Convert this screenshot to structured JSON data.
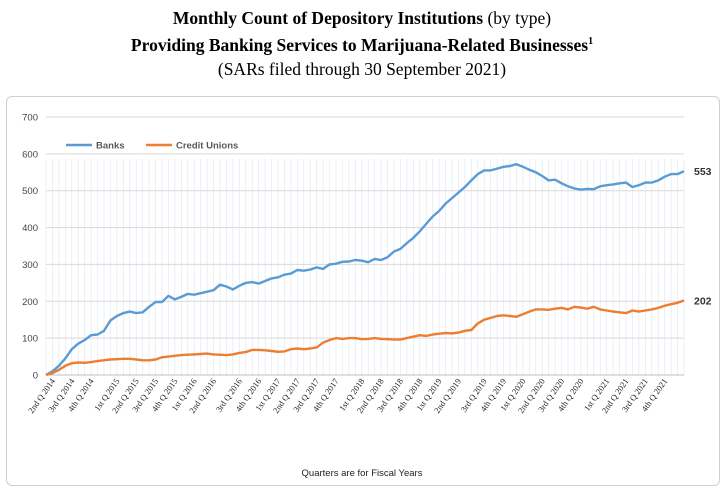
{
  "header": {
    "title_bold": "Monthly Count of Depository Institutions",
    "title_regular": " (by type)",
    "subtitle": "Providing Banking Services to Marijuana-Related Businesses",
    "subtitle_sup": "1",
    "note": "(SARs filed through 30 September 2021)"
  },
  "footnote": "Quarters are for Fiscal Years",
  "chart_data": {
    "type": "line",
    "title": "Monthly Count of Depository Institutions (by type) Providing Banking Services to Marijuana-Related Businesses",
    "xlabel": "Quarters are for Fiscal Years",
    "ylabel": "",
    "ylim": [
      0,
      700
    ],
    "yticks": [
      0,
      100,
      200,
      300,
      400,
      500,
      600,
      700
    ],
    "grid": true,
    "legend": "top-left",
    "x_tick_labels": [
      "2nd Q 2014",
      "3rd Q 2014",
      "4th Q 2014",
      "1st Q 2015",
      "2nd Q 2015",
      "3rd Q 2015",
      "4th Q 2015",
      "1st Q 2016",
      "2nd Q 2016",
      "3rd Q 2016",
      "4th Q 2016",
      "1st Q 2017",
      "2nd Q 2017",
      "3rd Q 2017",
      "4th Q 2017",
      "1st Q 2018",
      "2nd Q 2018",
      "3rd Q 2018",
      "4th Q 2018",
      "1st Q 2019",
      "2nd Q 2019",
      "3rd Q 2019",
      "4th Q 2019",
      "1st Q 2020",
      "2nd Q 2020",
      "3rd Q 2020",
      "4th Q 2020",
      "1st Q 2021",
      "2nd Q 2021",
      "3rd Q 2021",
      "4th Q 2021"
    ],
    "series": [
      {
        "name": "Banks",
        "color": "#5b9bd5",
        "end_label": "553",
        "values": [
          0,
          10,
          25,
          45,
          70,
          85,
          95,
          108,
          110,
          120,
          148,
          160,
          168,
          172,
          168,
          170,
          185,
          198,
          198,
          215,
          205,
          212,
          220,
          218,
          222,
          226,
          230,
          245,
          240,
          232,
          242,
          250,
          252,
          248,
          255,
          262,
          265,
          272,
          275,
          285,
          283,
          286,
          292,
          288,
          300,
          302,
          307,
          308,
          312,
          310,
          306,
          315,
          312,
          320,
          335,
          342,
          358,
          372,
          390,
          410,
          430,
          445,
          465,
          480,
          495,
          510,
          528,
          545,
          555,
          555,
          560,
          565,
          567,
          572,
          565,
          557,
          550,
          540,
          528,
          530,
          520,
          512,
          506,
          503,
          505,
          504,
          512,
          515,
          517,
          520,
          522,
          510,
          515,
          522,
          522,
          528,
          538,
          545,
          545,
          553
        ]
      },
      {
        "name": "Credit Unions",
        "color": "#ed7d31",
        "end_label": "202",
        "values": [
          0,
          5,
          14,
          25,
          32,
          34,
          33,
          35,
          38,
          40,
          42,
          43,
          44,
          44,
          42,
          40,
          40,
          42,
          48,
          50,
          52,
          54,
          55,
          56,
          57,
          58,
          56,
          55,
          54,
          56,
          60,
          62,
          68,
          68,
          67,
          65,
          63,
          64,
          70,
          72,
          70,
          72,
          75,
          88,
          95,
          100,
          98,
          100,
          100,
          97,
          98,
          100,
          98,
          97,
          96,
          96,
          100,
          104,
          108,
          106,
          110,
          112,
          114,
          113,
          115,
          120,
          122,
          140,
          150,
          155,
          160,
          162,
          160,
          158,
          165,
          172,
          178,
          178,
          177,
          180,
          182,
          178,
          185,
          183,
          180,
          185,
          178,
          175,
          172,
          170,
          168,
          175,
          172,
          175,
          178,
          182,
          188,
          192,
          196,
          202
        ]
      }
    ]
  }
}
